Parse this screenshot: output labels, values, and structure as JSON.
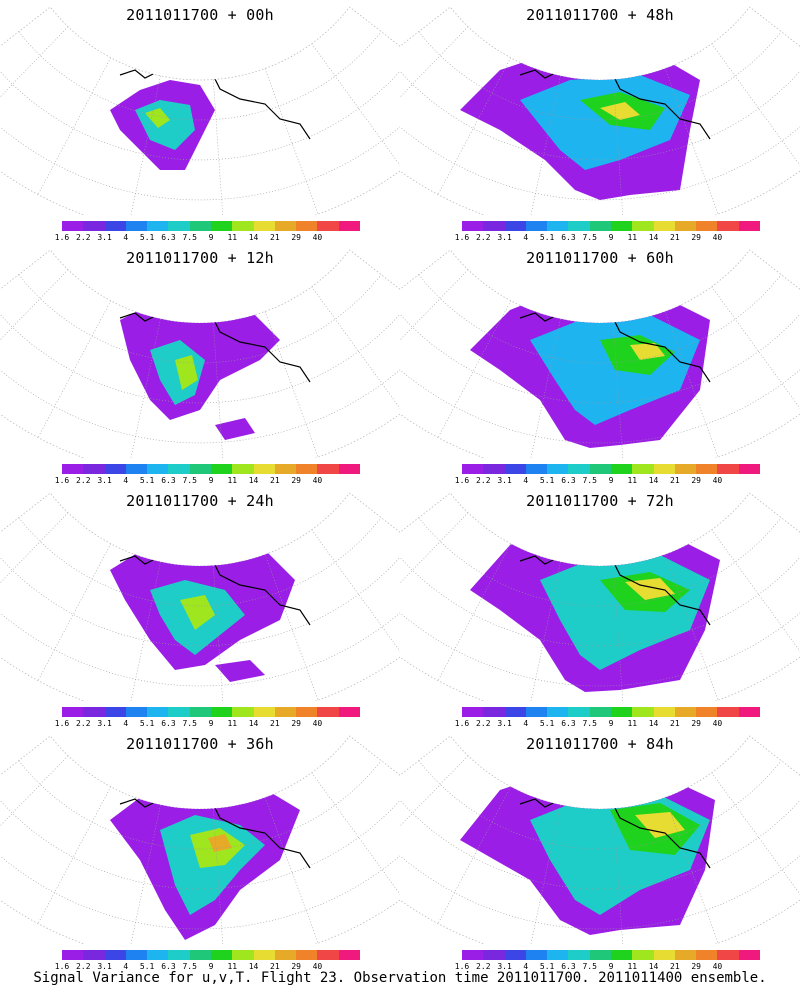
{
  "panels": [
    {
      "title": "2011011700 + 00h"
    },
    {
      "title": "2011011700 + 48h"
    },
    {
      "title": "2011011700 + 12h"
    },
    {
      "title": "2011011700 + 60h"
    },
    {
      "title": "2011011700 + 24h"
    },
    {
      "title": "2011011700 + 72h"
    },
    {
      "title": "2011011700 + 36h"
    },
    {
      "title": "2011011700 + 84h"
    }
  ],
  "colorbar": {
    "labels": [
      "1.6",
      "2.2",
      "3.1",
      "4",
      "5.1",
      "6.3",
      "7.5",
      "9",
      "11",
      "14",
      "21",
      "29",
      "40"
    ],
    "colors": [
      "#9a1ee6",
      "#7a28e0",
      "#3c46e6",
      "#1e82f0",
      "#1eb4f0",
      "#1ecdc8",
      "#1ec878",
      "#1ed21e",
      "#a0e61e",
      "#e6dc32",
      "#e6aa28",
      "#f0822a",
      "#f04646",
      "#f0197d"
    ]
  },
  "footer": "Signal Variance for u,v,T. Flight 23. Observation time 2011011700. 2011011400 ensemble."
}
